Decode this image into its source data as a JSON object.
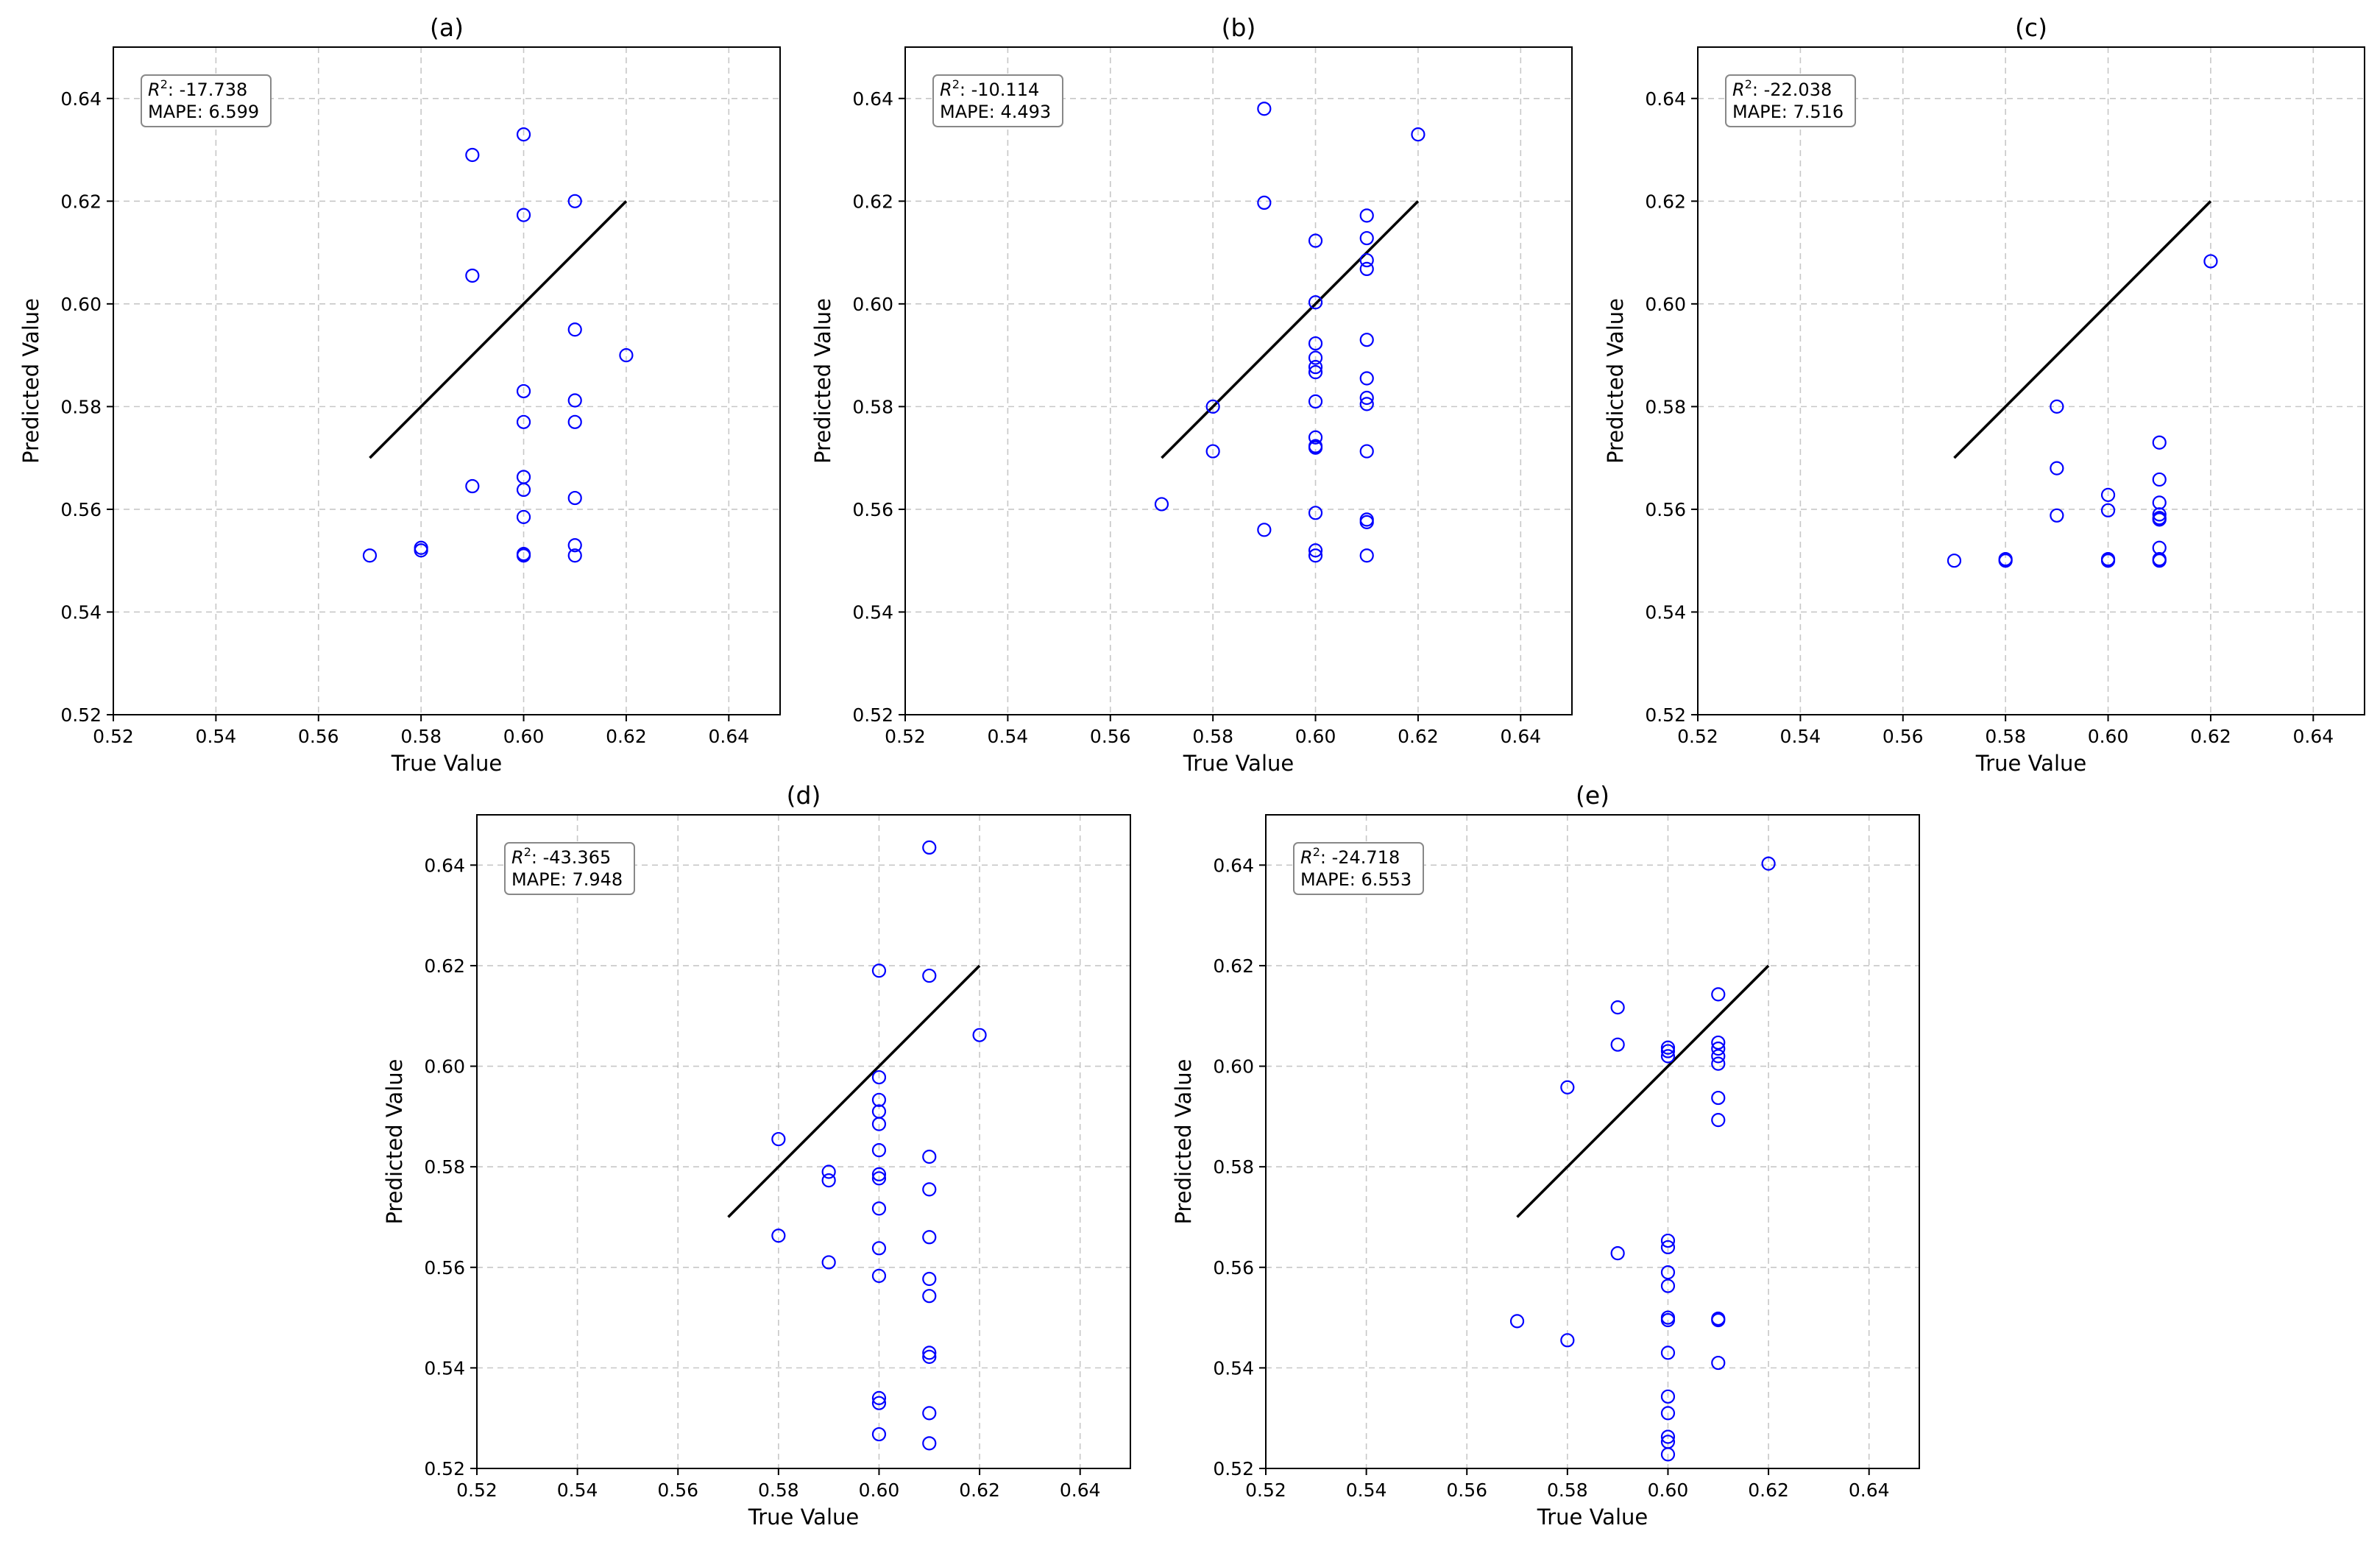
{
  "chart_data": [
    {
      "id": "a",
      "type": "scatter",
      "title": "(a)",
      "xlabel": "True Value",
      "ylabel": "Predicted Value",
      "xlim": [
        0.52,
        0.65
      ],
      "ylim": [
        0.52,
        0.65
      ],
      "xticks": [
        0.52,
        0.54,
        0.56,
        0.58,
        0.6,
        0.62,
        0.64
      ],
      "yticks": [
        0.52,
        0.54,
        0.56,
        0.58,
        0.6,
        0.62,
        0.64
      ],
      "tick_labels": [
        "0.52",
        "0.54",
        "0.56",
        "0.58",
        "0.60",
        "0.62",
        "0.64"
      ],
      "grid": true,
      "stats": {
        "r2_label": "R",
        "r2_value": ": -17.738",
        "mape": "MAPE: 6.599"
      },
      "reference_line": {
        "from": [
          0.57,
          0.57
        ],
        "to": [
          0.62,
          0.62
        ]
      },
      "points": [
        [
          0.57,
          0.551
        ],
        [
          0.58,
          0.552
        ],
        [
          0.58,
          0.5525
        ],
        [
          0.59,
          0.629
        ],
        [
          0.59,
          0.6055
        ],
        [
          0.59,
          0.5645
        ],
        [
          0.6,
          0.633
        ],
        [
          0.6,
          0.6173
        ],
        [
          0.6,
          0.583
        ],
        [
          0.6,
          0.577
        ],
        [
          0.6,
          0.5663
        ],
        [
          0.6,
          0.5638
        ],
        [
          0.6,
          0.5585
        ],
        [
          0.6,
          0.551
        ],
        [
          0.6,
          0.5513
        ],
        [
          0.61,
          0.62
        ],
        [
          0.61,
          0.595
        ],
        [
          0.61,
          0.5812
        ],
        [
          0.61,
          0.577
        ],
        [
          0.61,
          0.5622
        ],
        [
          0.61,
          0.553
        ],
        [
          0.61,
          0.551
        ],
        [
          0.62,
          0.59
        ]
      ]
    },
    {
      "id": "b",
      "type": "scatter",
      "title": "(b)",
      "xlabel": "True Value",
      "ylabel": "Predicted Value",
      "xlim": [
        0.52,
        0.65
      ],
      "ylim": [
        0.52,
        0.65
      ],
      "xticks": [
        0.52,
        0.54,
        0.56,
        0.58,
        0.6,
        0.62,
        0.64
      ],
      "yticks": [
        0.52,
        0.54,
        0.56,
        0.58,
        0.6,
        0.62,
        0.64
      ],
      "tick_labels": [
        "0.52",
        "0.54",
        "0.56",
        "0.58",
        "0.60",
        "0.62",
        "0.64"
      ],
      "grid": true,
      "stats": {
        "r2_label": "R",
        "r2_value": ": -10.114",
        "mape": "MAPE: 4.493"
      },
      "reference_line": {
        "from": [
          0.57,
          0.57
        ],
        "to": [
          0.62,
          0.62
        ]
      },
      "points": [
        [
          0.57,
          0.561
        ],
        [
          0.58,
          0.58
        ],
        [
          0.58,
          0.5713
        ],
        [
          0.59,
          0.638
        ],
        [
          0.59,
          0.6197
        ],
        [
          0.59,
          0.556
        ],
        [
          0.6,
          0.6123
        ],
        [
          0.6,
          0.6003
        ],
        [
          0.6,
          0.5923
        ],
        [
          0.6,
          0.5895
        ],
        [
          0.6,
          0.5877
        ],
        [
          0.6,
          0.5867
        ],
        [
          0.6,
          0.581
        ],
        [
          0.6,
          0.574
        ],
        [
          0.6,
          0.5723
        ],
        [
          0.6,
          0.572
        ],
        [
          0.6,
          0.5593
        ],
        [
          0.6,
          0.552
        ],
        [
          0.6,
          0.551
        ],
        [
          0.61,
          0.6172
        ],
        [
          0.61,
          0.6128
        ],
        [
          0.61,
          0.6085
        ],
        [
          0.61,
          0.6068
        ],
        [
          0.61,
          0.593
        ],
        [
          0.61,
          0.5855
        ],
        [
          0.61,
          0.5817
        ],
        [
          0.61,
          0.5805
        ],
        [
          0.61,
          0.5713
        ],
        [
          0.61,
          0.558
        ],
        [
          0.61,
          0.5575
        ],
        [
          0.61,
          0.551
        ],
        [
          0.62,
          0.633
        ]
      ]
    },
    {
      "id": "c",
      "type": "scatter",
      "title": "(c)",
      "xlabel": "True Value",
      "ylabel": "Predicted Value",
      "xlim": [
        0.52,
        0.65
      ],
      "ylim": [
        0.52,
        0.65
      ],
      "xticks": [
        0.52,
        0.54,
        0.56,
        0.58,
        0.6,
        0.62,
        0.64
      ],
      "yticks": [
        0.52,
        0.54,
        0.56,
        0.58,
        0.6,
        0.62,
        0.64
      ],
      "tick_labels": [
        "0.52",
        "0.54",
        "0.56",
        "0.58",
        "0.60",
        "0.62",
        "0.64"
      ],
      "grid": true,
      "stats": {
        "r2_label": "R",
        "r2_value": ": -22.038",
        "mape": "MAPE: 7.516"
      },
      "reference_line": {
        "from": [
          0.57,
          0.57
        ],
        "to": [
          0.62,
          0.62
        ]
      },
      "points": [
        [
          0.57,
          0.55
        ],
        [
          0.58,
          0.5503
        ],
        [
          0.58,
          0.55
        ],
        [
          0.59,
          0.58
        ],
        [
          0.59,
          0.568
        ],
        [
          0.59,
          0.5588
        ],
        [
          0.6,
          0.5628
        ],
        [
          0.6,
          0.5598
        ],
        [
          0.6,
          0.5503
        ],
        [
          0.6,
          0.55
        ],
        [
          0.61,
          0.573
        ],
        [
          0.61,
          0.5658
        ],
        [
          0.61,
          0.5613
        ],
        [
          0.61,
          0.559
        ],
        [
          0.61,
          0.5583
        ],
        [
          0.61,
          0.558
        ],
        [
          0.61,
          0.5525
        ],
        [
          0.61,
          0.5503
        ],
        [
          0.61,
          0.55
        ],
        [
          0.62,
          0.6083
        ]
      ]
    },
    {
      "id": "d",
      "type": "scatter",
      "title": "(d)",
      "xlabel": "True Value",
      "ylabel": "Predicted Value",
      "xlim": [
        0.52,
        0.65
      ],
      "ylim": [
        0.52,
        0.65
      ],
      "xticks": [
        0.52,
        0.54,
        0.56,
        0.58,
        0.6,
        0.62,
        0.64
      ],
      "yticks": [
        0.52,
        0.54,
        0.56,
        0.58,
        0.6,
        0.62,
        0.64
      ],
      "tick_labels": [
        "0.52",
        "0.54",
        "0.56",
        "0.58",
        "0.60",
        "0.62",
        "0.64"
      ],
      "grid": true,
      "stats": {
        "r2_label": "R",
        "r2_value": ": -43.365",
        "mape": "MAPE: 7.948"
      },
      "reference_line": {
        "from": [
          0.57,
          0.57
        ],
        "to": [
          0.62,
          0.62
        ]
      },
      "points": [
        [
          0.58,
          0.5855
        ],
        [
          0.58,
          0.5663
        ],
        [
          0.59,
          0.579
        ],
        [
          0.59,
          0.5773
        ],
        [
          0.59,
          0.561
        ],
        [
          0.6,
          0.619
        ],
        [
          0.6,
          0.5978
        ],
        [
          0.6,
          0.5933
        ],
        [
          0.6,
          0.591
        ],
        [
          0.6,
          0.5885
        ],
        [
          0.6,
          0.5833
        ],
        [
          0.6,
          0.5785
        ],
        [
          0.6,
          0.5777
        ],
        [
          0.6,
          0.5717
        ],
        [
          0.6,
          0.5638
        ],
        [
          0.6,
          0.5583
        ],
        [
          0.6,
          0.534
        ],
        [
          0.6,
          0.533
        ],
        [
          0.6,
          0.5268
        ],
        [
          0.61,
          0.6435
        ],
        [
          0.61,
          0.618
        ],
        [
          0.61,
          0.582
        ],
        [
          0.61,
          0.5755
        ],
        [
          0.61,
          0.566
        ],
        [
          0.61,
          0.5577
        ],
        [
          0.61,
          0.5543
        ],
        [
          0.61,
          0.543
        ],
        [
          0.61,
          0.5422
        ],
        [
          0.61,
          0.531
        ],
        [
          0.61,
          0.525
        ],
        [
          0.62,
          0.6062
        ]
      ]
    },
    {
      "id": "e",
      "type": "scatter",
      "title": "(e)",
      "xlabel": "True Value",
      "ylabel": "Predicted Value",
      "xlim": [
        0.52,
        0.65
      ],
      "ylim": [
        0.52,
        0.65
      ],
      "xticks": [
        0.52,
        0.54,
        0.56,
        0.58,
        0.6,
        0.62,
        0.64
      ],
      "yticks": [
        0.52,
        0.54,
        0.56,
        0.58,
        0.6,
        0.62,
        0.64
      ],
      "tick_labels": [
        "0.52",
        "0.54",
        "0.56",
        "0.58",
        "0.60",
        "0.62",
        "0.64"
      ],
      "grid": true,
      "stats": {
        "r2_label": "R",
        "r2_value": ": -24.718",
        "mape": "MAPE: 6.553"
      },
      "reference_line": {
        "from": [
          0.57,
          0.57
        ],
        "to": [
          0.62,
          0.62
        ]
      },
      "points": [
        [
          0.57,
          0.5493
        ],
        [
          0.58,
          0.5958
        ],
        [
          0.58,
          0.5455
        ],
        [
          0.59,
          0.6117
        ],
        [
          0.59,
          0.6043
        ],
        [
          0.59,
          0.5628
        ],
        [
          0.6,
          0.6037
        ],
        [
          0.6,
          0.603
        ],
        [
          0.6,
          0.602
        ],
        [
          0.6,
          0.5653
        ],
        [
          0.6,
          0.564
        ],
        [
          0.6,
          0.559
        ],
        [
          0.6,
          0.5563
        ],
        [
          0.6,
          0.55
        ],
        [
          0.6,
          0.5495
        ],
        [
          0.6,
          0.543
        ],
        [
          0.6,
          0.5343
        ],
        [
          0.6,
          0.531
        ],
        [
          0.6,
          0.5263
        ],
        [
          0.6,
          0.5253
        ],
        [
          0.6,
          0.5228
        ],
        [
          0.61,
          0.6143
        ],
        [
          0.61,
          0.6047
        ],
        [
          0.61,
          0.6035
        ],
        [
          0.61,
          0.602
        ],
        [
          0.61,
          0.6005
        ],
        [
          0.61,
          0.5937
        ],
        [
          0.61,
          0.5893
        ],
        [
          0.61,
          0.5498
        ],
        [
          0.61,
          0.5495
        ],
        [
          0.61,
          0.541
        ],
        [
          0.62,
          0.6403
        ]
      ]
    }
  ]
}
